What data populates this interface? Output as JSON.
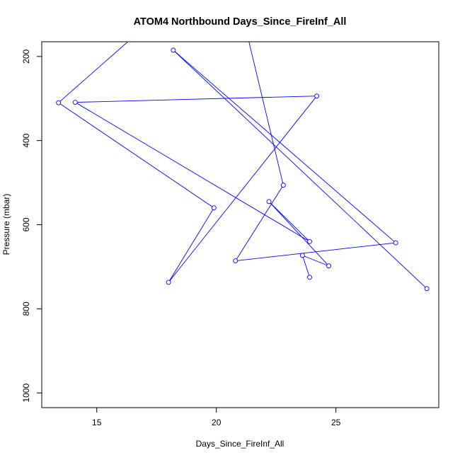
{
  "chart_data": {
    "type": "line",
    "title": "ATOM4 Northbound Days_Since_FireInf_All",
    "xlabel": "Days_Since_FireInf_All",
    "ylabel": "Pressure (mbar)",
    "xlim": [
      12.7,
      29.3
    ],
    "ylim": [
      1035,
      165
    ],
    "y_axis_reversed": true,
    "x_ticks": [
      15,
      20,
      25
    ],
    "y_ticks": [
      200,
      400,
      600,
      800,
      1000
    ],
    "grid": false,
    "legend": "none",
    "line_color": "#0000ff",
    "marker": "open-circle",
    "line_segments": [
      {
        "name": "",
        "points": [
          {
            "x": 16.6,
            "y": 150
          },
          {
            "x": 13.4,
            "y": 310
          },
          {
            "x": 19.9,
            "y": 560
          },
          {
            "x": 18.0,
            "y": 737
          },
          {
            "x": 24.2,
            "y": 294
          },
          {
            "x": 14.1,
            "y": 309
          },
          {
            "x": 23.9,
            "y": 640
          },
          {
            "x": 22.2,
            "y": 545
          },
          {
            "x": 24.7,
            "y": 698
          },
          {
            "x": 23.6,
            "y": 673
          },
          {
            "x": 23.9,
            "y": 725
          }
        ],
        "marker_start_index": 1
      },
      {
        "name": "",
        "points": [
          {
            "x": 22.8,
            "y": 506
          },
          {
            "x": 20.8,
            "y": 686
          },
          {
            "x": 27.5,
            "y": 643
          },
          {
            "x": 18.2,
            "y": 185
          },
          {
            "x": 28.8,
            "y": 752
          }
        ],
        "marker_start_index": 0
      },
      {
        "name": "",
        "points": [
          {
            "x": 21.3,
            "y": 150
          },
          {
            "x": 22.8,
            "y": 506
          }
        ],
        "marker_start_index": 99
      }
    ]
  }
}
